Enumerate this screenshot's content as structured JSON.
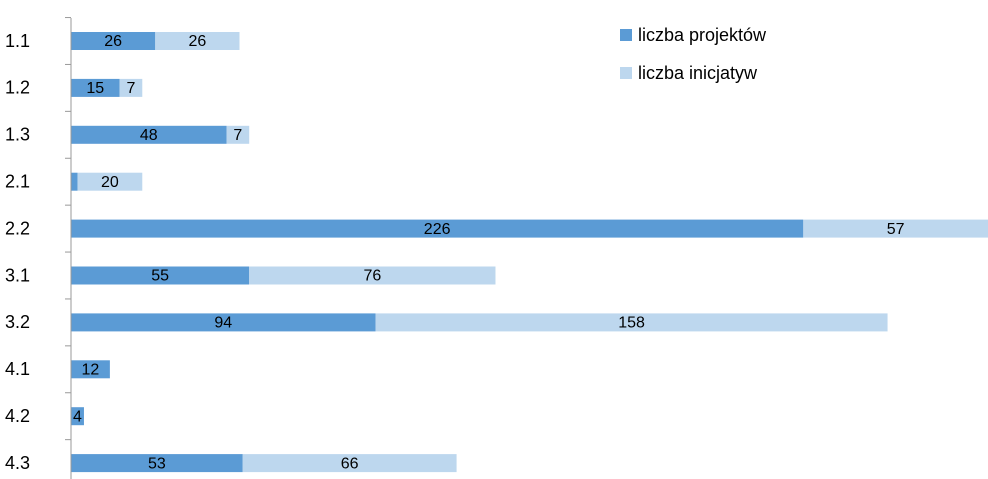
{
  "chart_data": {
    "type": "stacked_barh",
    "categories": [
      "1.1",
      "1.2",
      "1.3",
      "2.1",
      "2.2",
      "3.1",
      "3.2",
      "4.1",
      "4.2",
      "4.3"
    ],
    "series": [
      {
        "name": "liczba projektów",
        "color": "#5b9bd5",
        "values": [
          26,
          15,
          48,
          2,
          226,
          55,
          94,
          12,
          4,
          53
        ]
      },
      {
        "name": "liczba inicjatyw",
        "color": "#bdd7ee",
        "values": [
          26,
          7,
          7,
          20,
          57,
          76,
          158,
          null,
          null,
          66
        ]
      }
    ],
    "legend": "top-right"
  }
}
